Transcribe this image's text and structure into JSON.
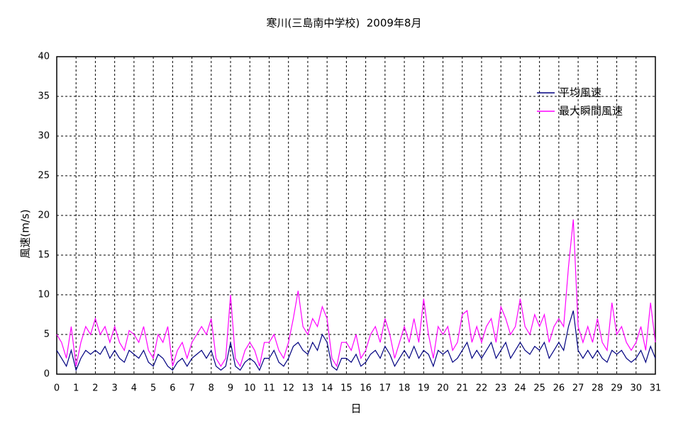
{
  "chart_data": {
    "type": "line",
    "title": "寒川(三島南中学校)  2009年8月",
    "x_label": "日",
    "y_label": "風速(m/s)",
    "xlim": [
      0,
      31
    ],
    "xticks": [
      0,
      1,
      2,
      3,
      4,
      5,
      6,
      7,
      8,
      9,
      10,
      11,
      12,
      13,
      14,
      15,
      16,
      17,
      18,
      19,
      20,
      21,
      22,
      23,
      24,
      25,
      26,
      27,
      28,
      29,
      30,
      31
    ],
    "ylim": [
      0,
      40
    ],
    "yticks": [
      0,
      5,
      10,
      15,
      20,
      25,
      30,
      35,
      40
    ],
    "grid": true,
    "legend": "upper right",
    "x": [
      0,
      0.25,
      0.5,
      0.75,
      1,
      1.25,
      1.5,
      1.75,
      2,
      2.25,
      2.5,
      2.75,
      3,
      3.25,
      3.5,
      3.75,
      4,
      4.25,
      4.5,
      4.75,
      5,
      5.25,
      5.5,
      5.75,
      6,
      6.25,
      6.5,
      6.75,
      7,
      7.25,
      7.5,
      7.75,
      8,
      8.25,
      8.5,
      8.75,
      9,
      9.25,
      9.5,
      9.75,
      10,
      10.25,
      10.5,
      10.75,
      11,
      11.25,
      11.5,
      11.75,
      12,
      12.25,
      12.5,
      12.75,
      13,
      13.25,
      13.5,
      13.75,
      14,
      14.25,
      14.5,
      14.75,
      15,
      15.25,
      15.5,
      15.75,
      16,
      16.25,
      16.5,
      16.75,
      17,
      17.25,
      17.5,
      17.75,
      18,
      18.25,
      18.5,
      18.75,
      19,
      19.25,
      19.5,
      19.75,
      20,
      20.25,
      20.5,
      20.75,
      21,
      21.25,
      21.5,
      21.75,
      22,
      22.25,
      22.5,
      22.75,
      23,
      23.25,
      23.5,
      23.75,
      24,
      24.25,
      24.5,
      24.75,
      25,
      25.25,
      25.5,
      25.75,
      26,
      26.25,
      26.5,
      26.75,
      27,
      27.25,
      27.5,
      27.75,
      28,
      28.25,
      28.5,
      28.75,
      29,
      29.25,
      29.5,
      29.75,
      30,
      30.25,
      30.5,
      30.75,
      31
    ],
    "series": [
      {
        "name": "平均風速",
        "color": "#000080",
        "values": [
          3,
          2,
          1,
          3,
          0.5,
          2,
          3,
          2.5,
          3,
          2.5,
          3.5,
          2,
          3,
          2,
          1.5,
          3,
          2.5,
          2,
          3,
          1.5,
          1,
          2.5,
          2,
          1,
          0.5,
          1.5,
          2,
          1,
          2,
          2.5,
          3,
          2,
          3,
          1,
          0.5,
          1,
          4,
          1,
          0.5,
          1.5,
          2,
          1.5,
          0.5,
          2,
          2,
          3,
          1.5,
          1,
          2,
          3.5,
          4,
          3,
          2.5,
          4,
          3,
          5,
          4,
          1,
          0.5,
          2,
          2,
          1.5,
          2.5,
          1,
          1.5,
          2.5,
          3,
          2,
          3.5,
          2.5,
          1,
          2,
          3,
          2,
          3.5,
          2,
          3,
          2.5,
          1,
          3,
          2.5,
          3,
          1.5,
          2,
          3,
          4,
          2,
          3,
          2,
          3,
          4,
          2,
          3,
          4,
          2,
          3,
          4,
          3,
          2.5,
          3.5,
          3,
          4,
          2,
          3,
          4,
          3,
          6,
          8,
          3,
          2,
          3,
          2,
          3,
          2,
          1.5,
          3,
          2.5,
          3,
          2,
          1.5,
          2,
          3,
          1.5,
          3.5,
          2
        ]
      },
      {
        "name": "最大瞬間風速",
        "color": "#ff00ff",
        "values": [
          5,
          4,
          2,
          6,
          1,
          4,
          6,
          5,
          7,
          5,
          6,
          4,
          6,
          4,
          3,
          5.5,
          5,
          4,
          6,
          3,
          2,
          5,
          4,
          6,
          1,
          3,
          4,
          2,
          4,
          5,
          6,
          5,
          7,
          2,
          1,
          2,
          10,
          2,
          1,
          3,
          4,
          3,
          1,
          4,
          4,
          5,
          3,
          2,
          4,
          7,
          10.5,
          6,
          5,
          7,
          6,
          8.5,
          7,
          2,
          1,
          4,
          4,
          3,
          5,
          2,
          3,
          5,
          6,
          4,
          7,
          5,
          2,
          4,
          6,
          4,
          7,
          4,
          9.5,
          5,
          2,
          6,
          5,
          6,
          3,
          4,
          7.5,
          8,
          4,
          6,
          4,
          6,
          7,
          4,
          8.5,
          7,
          5,
          6,
          9.5,
          6,
          5,
          7.5,
          6,
          7.5,
          4,
          6,
          7,
          6,
          13.5,
          19.5,
          6,
          4,
          6,
          4,
          7,
          4,
          3,
          9,
          5,
          6,
          4,
          3,
          4,
          6,
          3,
          9,
          4
        ]
      }
    ]
  }
}
